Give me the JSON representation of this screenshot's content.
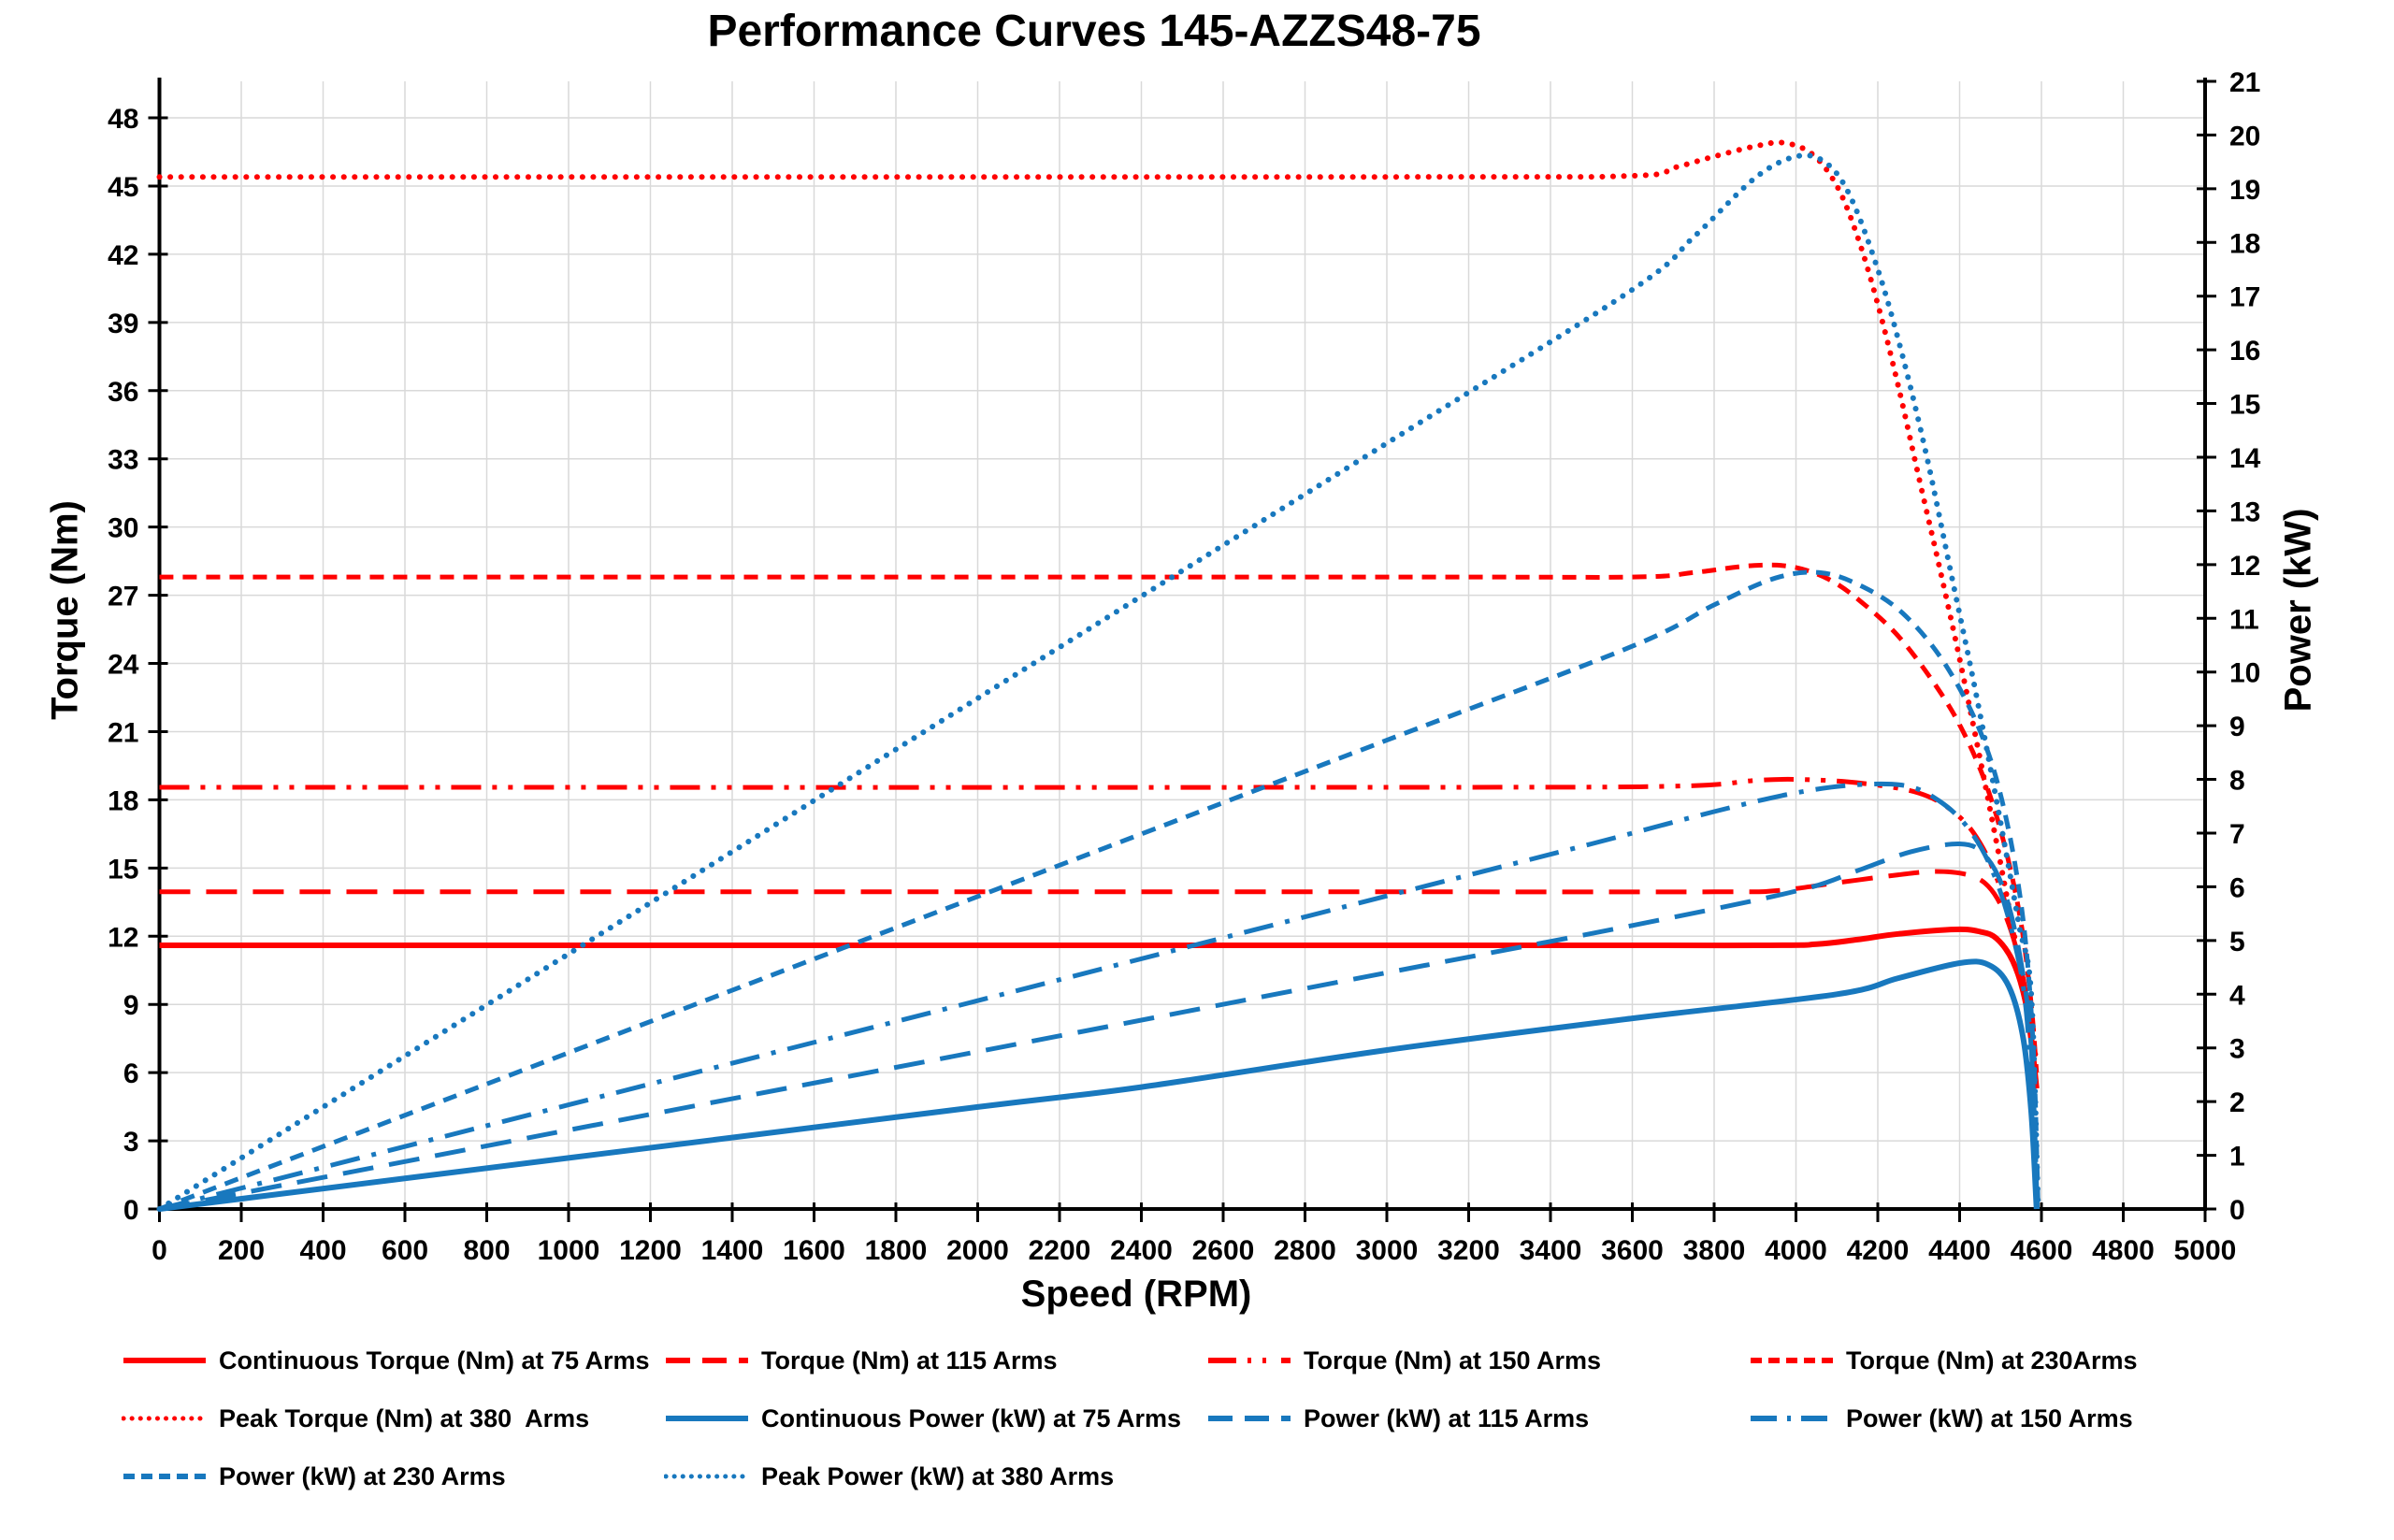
{
  "colors": {
    "red": "#FF0000",
    "blue": "#1878BE",
    "grid": "#D9D9D9",
    "axis": "#000000",
    "text": "#000000"
  },
  "chart_data": {
    "type": "line",
    "title": "Performance Curves 145-AZZS48-75",
    "xlabel": "Speed (RPM)",
    "ylabel_left": "Torque (Nm)",
    "ylabel_right": "Power (kW)",
    "xlim": [
      0,
      5000
    ],
    "torque_lim": [
      0,
      49.6
    ],
    "power_lim": [
      0,
      21
    ],
    "grid": true,
    "legend_position": "bottom",
    "x_ticks": [
      0,
      200,
      400,
      600,
      800,
      1000,
      1200,
      1400,
      1600,
      1800,
      2000,
      2200,
      2400,
      2600,
      2800,
      3000,
      3200,
      3400,
      3600,
      3800,
      4000,
      4200,
      4400,
      4600,
      4800,
      5000
    ],
    "torque_ticks": [
      0,
      3,
      6,
      9,
      12,
      15,
      18,
      21,
      24,
      27,
      30,
      33,
      36,
      39,
      42,
      45,
      48
    ],
    "power_ticks": [
      0,
      1,
      2,
      3,
      4,
      5,
      6,
      7,
      8,
      9,
      10,
      11,
      12,
      13,
      14,
      15,
      16,
      17,
      18,
      19,
      20,
      21
    ],
    "series": [
      {
        "name": "Continuous Torque (Nm) at 75 Arms",
        "axis": "torque",
        "color": "red",
        "dash": "solid",
        "points": [
          [
            0,
            11.6
          ],
          [
            3000,
            11.6
          ],
          [
            3900,
            11.6
          ],
          [
            4050,
            11.65
          ],
          [
            4150,
            11.85
          ],
          [
            4250,
            12.1
          ],
          [
            4390,
            12.3
          ],
          [
            4450,
            12.2
          ],
          [
            4490,
            11.9
          ],
          [
            4530,
            10.9
          ],
          [
            4560,
            9.2
          ],
          [
            4578,
            7.0
          ],
          [
            4588,
            5.3
          ]
        ]
      },
      {
        "name": "Torque (Nm) at 115 Arms",
        "axis": "torque",
        "color": "red",
        "dash": "longdash",
        "points": [
          [
            0,
            13.95
          ],
          [
            3000,
            13.95
          ],
          [
            3800,
            13.95
          ],
          [
            3950,
            14.0
          ],
          [
            4100,
            14.35
          ],
          [
            4250,
            14.7
          ],
          [
            4340,
            14.85
          ],
          [
            4420,
            14.7
          ],
          [
            4470,
            14.2
          ],
          [
            4510,
            13.0
          ],
          [
            4545,
            11.0
          ],
          [
            4570,
            8.5
          ],
          [
            4586,
            5.5
          ]
        ]
      },
      {
        "name": "Torque (Nm) at 150 Arms",
        "axis": "torque",
        "color": "red",
        "dash": "dashdotdot",
        "points": [
          [
            0,
            18.55
          ],
          [
            3000,
            18.55
          ],
          [
            3700,
            18.6
          ],
          [
            3900,
            18.85
          ],
          [
            4000,
            18.9
          ],
          [
            4150,
            18.75
          ],
          [
            4300,
            18.3
          ],
          [
            4390,
            17.4
          ],
          [
            4450,
            16.1
          ],
          [
            4500,
            14.1
          ],
          [
            4540,
            11.5
          ],
          [
            4570,
            8.5
          ],
          [
            4585,
            5.8
          ]
        ]
      },
      {
        "name": "Torque (Nm) at 230Arms",
        "axis": "torque",
        "color": "red",
        "dash": "shortdash",
        "points": [
          [
            0,
            27.8
          ],
          [
            3000,
            27.8
          ],
          [
            3600,
            27.8
          ],
          [
            3750,
            28.0
          ],
          [
            3890,
            28.3
          ],
          [
            3990,
            28.25
          ],
          [
            4080,
            27.7
          ],
          [
            4160,
            26.7
          ],
          [
            4250,
            25.2
          ],
          [
            4335,
            23.2
          ],
          [
            4400,
            21.3
          ],
          [
            4460,
            18.9
          ],
          [
            4510,
            16.0
          ],
          [
            4550,
            12.6
          ],
          [
            4575,
            9.0
          ],
          [
            4588,
            6.0
          ]
        ]
      },
      {
        "name": "Peak Torque (Nm) at 380  Arms",
        "axis": "torque",
        "color": "red",
        "dash": "dotted",
        "points": [
          [
            0,
            45.4
          ],
          [
            3000,
            45.4
          ],
          [
            3600,
            45.45
          ],
          [
            3700,
            45.8
          ],
          [
            3800,
            46.3
          ],
          [
            3900,
            46.75
          ],
          [
            3970,
            46.9
          ],
          [
            4040,
            46.4
          ],
          [
            4100,
            45.0
          ],
          [
            4150,
            42.8
          ],
          [
            4200,
            39.8
          ],
          [
            4250,
            36.2
          ],
          [
            4300,
            32.2
          ],
          [
            4350,
            28.3
          ],
          [
            4400,
            24.2
          ],
          [
            4450,
            19.8
          ],
          [
            4500,
            15.2
          ],
          [
            4540,
            11.4
          ],
          [
            4570,
            8.4
          ],
          [
            4585,
            6.8
          ]
        ]
      },
      {
        "name": "Continuous Power (kW) at 75 Arms",
        "axis": "power",
        "color": "blue",
        "dash": "solid",
        "points": [
          [
            0,
            0
          ],
          [
            1000,
            0.95
          ],
          [
            2000,
            1.9
          ],
          [
            2400,
            2.27
          ],
          [
            3000,
            2.96
          ],
          [
            3600,
            3.55
          ],
          [
            4100,
            4.0
          ],
          [
            4250,
            4.3
          ],
          [
            4400,
            4.58
          ],
          [
            4470,
            4.55
          ],
          [
            4520,
            4.15
          ],
          [
            4555,
            3.2
          ],
          [
            4575,
            1.8
          ],
          [
            4588,
            0
          ]
        ]
      },
      {
        "name": "Power (kW) at 115 Arms",
        "axis": "power",
        "color": "blue",
        "dash": "longdash",
        "points": [
          [
            0,
            0
          ],
          [
            1000,
            1.47
          ],
          [
            2000,
            2.93
          ],
          [
            3000,
            4.4
          ],
          [
            3600,
            5.28
          ],
          [
            4000,
            5.92
          ],
          [
            4150,
            6.3
          ],
          [
            4280,
            6.65
          ],
          [
            4400,
            6.8
          ],
          [
            4460,
            6.6
          ],
          [
            4510,
            5.9
          ],
          [
            4550,
            4.6
          ],
          [
            4575,
            3.0
          ],
          [
            4590,
            0
          ]
        ]
      },
      {
        "name": "Power (kW) at 150 Arms",
        "axis": "power",
        "color": "blue",
        "dash": "dashdot",
        "points": [
          [
            0,
            0
          ],
          [
            1000,
            1.94
          ],
          [
            2000,
            3.88
          ],
          [
            3000,
            5.83
          ],
          [
            3500,
            6.8
          ],
          [
            3800,
            7.4
          ],
          [
            4000,
            7.75
          ],
          [
            4150,
            7.9
          ],
          [
            4270,
            7.88
          ],
          [
            4350,
            7.6
          ],
          [
            4420,
            7.1
          ],
          [
            4480,
            6.3
          ],
          [
            4530,
            5.1
          ],
          [
            4565,
            3.5
          ],
          [
            4590,
            0
          ]
        ]
      },
      {
        "name": "Power (kW) at 230 Arms",
        "axis": "power",
        "color": "blue",
        "dash": "shortdash",
        "points": [
          [
            0,
            0
          ],
          [
            1000,
            2.91
          ],
          [
            2000,
            5.82
          ],
          [
            3000,
            8.73
          ],
          [
            3600,
            10.48
          ],
          [
            3800,
            11.25
          ],
          [
            3950,
            11.75
          ],
          [
            4060,
            11.85
          ],
          [
            4160,
            11.6
          ],
          [
            4260,
            11.1
          ],
          [
            4360,
            10.2
          ],
          [
            4450,
            8.9
          ],
          [
            4510,
            7.4
          ],
          [
            4555,
            5.4
          ],
          [
            4580,
            3.0
          ],
          [
            4592,
            0
          ]
        ]
      },
      {
        "name": "Peak Power (kW) at 380 Arms",
        "axis": "power",
        "color": "blue",
        "dash": "dotted",
        "points": [
          [
            0,
            0
          ],
          [
            1000,
            4.75
          ],
          [
            2000,
            9.51
          ],
          [
            3000,
            14.26
          ],
          [
            3600,
            17.12
          ],
          [
            3750,
            18.1
          ],
          [
            3900,
            19.2
          ],
          [
            4000,
            19.6
          ],
          [
            4070,
            19.5
          ],
          [
            4130,
            18.9
          ],
          [
            4200,
            17.5
          ],
          [
            4260,
            15.9
          ],
          [
            4320,
            14.0
          ],
          [
            4380,
            11.8
          ],
          [
            4440,
            9.6
          ],
          [
            4500,
            7.2
          ],
          [
            4545,
            5.3
          ],
          [
            4575,
            4.0
          ],
          [
            4592,
            0
          ]
        ]
      }
    ],
    "legend_rows": [
      [
        0,
        1,
        2,
        3
      ],
      [
        4,
        5,
        6,
        7
      ],
      [
        8,
        9
      ]
    ]
  }
}
